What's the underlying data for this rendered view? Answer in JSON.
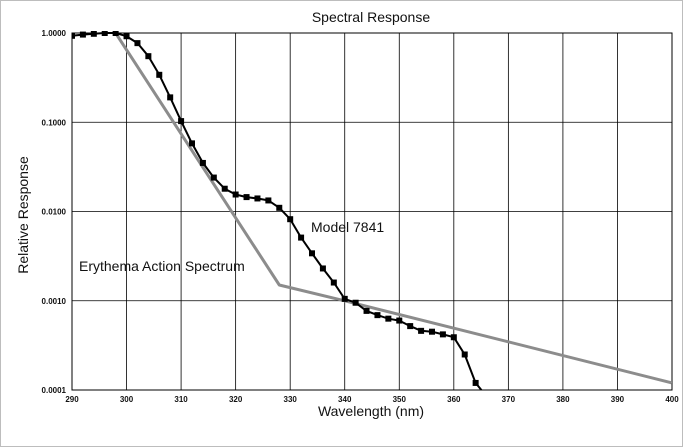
{
  "chart_data": {
    "type": "line",
    "title": "Spectral Response",
    "xlabel": "Wavelength (nm)",
    "ylabel": "Relative Response",
    "x_scale": "linear",
    "y_scale": "log",
    "xlim": [
      290,
      400
    ],
    "ylim": [
      0.0001,
      1.0
    ],
    "grid": true,
    "x_ticks": [
      "290",
      "300",
      "310",
      "320",
      "330",
      "340",
      "350",
      "360",
      "370",
      "380",
      "390",
      "400"
    ],
    "y_ticks": [
      "1.0000",
      "0.1000",
      "0.0100",
      "0.0010",
      "0.0001"
    ],
    "annotations": [
      {
        "text": "Model 7841",
        "series": "Model 7841"
      },
      {
        "text": "Erythema Action Spectrum",
        "series": "Erythema Action Spectrum"
      }
    ],
    "series": [
      {
        "name": "Model 7841",
        "color": "#000000",
        "markers": true,
        "points": [
          [
            290,
            0.93
          ],
          [
            292,
            0.96
          ],
          [
            294,
            0.98
          ],
          [
            296,
            1.0
          ],
          [
            298,
            1.0
          ],
          [
            300,
            0.92
          ],
          [
            302,
            0.77
          ],
          [
            304,
            0.55
          ],
          [
            306,
            0.34
          ],
          [
            308,
            0.19
          ],
          [
            310,
            0.103
          ],
          [
            312,
            0.058
          ],
          [
            314,
            0.035
          ],
          [
            316,
            0.024
          ],
          [
            318,
            0.018
          ],
          [
            320,
            0.0155
          ],
          [
            322,
            0.0145
          ],
          [
            324,
            0.014
          ],
          [
            326,
            0.0133
          ],
          [
            328,
            0.011
          ],
          [
            330,
            0.0082
          ],
          [
            332,
            0.0051
          ],
          [
            334,
            0.0034
          ],
          [
            336,
            0.0023
          ],
          [
            338,
            0.0016
          ],
          [
            340,
            0.00105
          ],
          [
            342,
            0.00095
          ],
          [
            344,
            0.00077
          ],
          [
            346,
            0.00069
          ],
          [
            348,
            0.00063
          ],
          [
            350,
            0.0006
          ],
          [
            352,
            0.00052
          ],
          [
            354,
            0.00046
          ],
          [
            356,
            0.00045
          ],
          [
            358,
            0.00042
          ],
          [
            360,
            0.00039
          ],
          [
            362,
            0.00025
          ],
          [
            364,
            0.00012
          ],
          [
            366,
            8.5e-05
          ]
        ]
      },
      {
        "name": "Erythema Action Spectrum",
        "color": "#8c8c8c",
        "markers": false,
        "points": [
          [
            298,
            1.0
          ],
          [
            328,
            0.0015
          ],
          [
            340,
            0.001
          ],
          [
            400,
            0.00012
          ]
        ]
      }
    ]
  }
}
